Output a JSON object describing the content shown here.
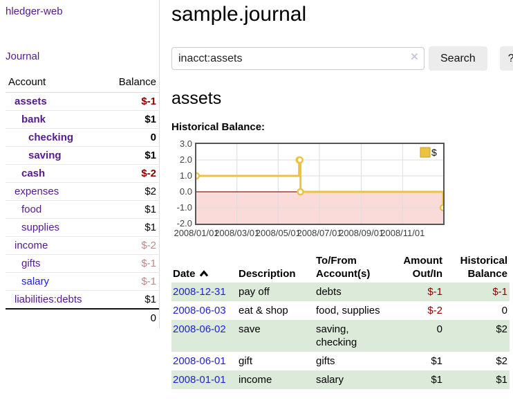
{
  "app": {
    "brand": "hledger-web",
    "nav_journal": "Journal"
  },
  "colors": {
    "link_purple": "#551a8b",
    "link_blue": "#2222cc",
    "negative_strong": "#8b0000",
    "negative_soft": "#b98a8a",
    "stripe_green": "#dcead9",
    "chart_line": "#edc240",
    "chart_negative_fill": "#fbdada",
    "chart_zero_line": "#8b1a1a"
  },
  "sidebar": {
    "header": {
      "account": "Account",
      "balance": "Balance"
    },
    "rows": [
      {
        "name": "assets",
        "balance": "$-1",
        "depth": 1,
        "bold": true
      },
      {
        "name": "bank",
        "balance": "$1",
        "depth": 2,
        "bold": true
      },
      {
        "name": "checking",
        "balance": "0",
        "depth": 3,
        "bold": true
      },
      {
        "name": "saving",
        "balance": "$1",
        "depth": 3,
        "bold": true
      },
      {
        "name": "cash",
        "balance": "$-2",
        "depth": 2,
        "bold": true
      },
      {
        "name": "expenses",
        "balance": "$2",
        "depth": 1,
        "bold": false
      },
      {
        "name": "food",
        "balance": "$1",
        "depth": 2,
        "bold": false
      },
      {
        "name": "supplies",
        "balance": "$1",
        "depth": 2,
        "bold": false
      },
      {
        "name": "income",
        "balance": "$-2",
        "depth": 1,
        "bold": false
      },
      {
        "name": "gifts",
        "balance": "$-1",
        "depth": 2,
        "bold": false
      },
      {
        "name": "salary",
        "balance": "$-1",
        "depth": 2,
        "bold": false,
        "link": "blue"
      },
      {
        "name": "liabilities:debts",
        "balance": "$1",
        "depth": 1,
        "bold": false
      }
    ],
    "total": "0"
  },
  "header": {
    "title": "sample.journal"
  },
  "search": {
    "value": "inacct:assets",
    "clear_icon": "×",
    "button": "Search",
    "help": "?"
  },
  "account_page": {
    "title": "assets",
    "chart_label": "Historical Balance:"
  },
  "chart_data": {
    "type": "line",
    "step": true,
    "title": "Historical Balance",
    "series": [
      {
        "name": "$",
        "points": [
          [
            "2008-01-01",
            1
          ],
          [
            "2008-06-01",
            2
          ],
          [
            "2008-06-02",
            2
          ],
          [
            "2008-06-03",
            0
          ],
          [
            "2008-12-31",
            -1
          ]
        ]
      }
    ],
    "x_range": [
      "2008-01-01",
      "2008-12-31"
    ],
    "ylim": [
      -2,
      3
    ],
    "y_ticks": [
      "3.0",
      "2.0",
      "1.0",
      "0.0",
      "-1.0",
      "-2.0"
    ],
    "x_ticks": [
      {
        "date": "2008-01-01",
        "label": "2008/01/01"
      },
      {
        "date": "2008-03-01",
        "label": "2008/03/01"
      },
      {
        "date": "2008-05-01",
        "label": "2008/05/01"
      },
      {
        "date": "2008-07-01",
        "label": "2008/07/01"
      },
      {
        "date": "2008-09-01",
        "label": "2008/09/01"
      },
      {
        "date": "2008-11-01",
        "label": "2008/11/01"
      }
    ],
    "legend": {
      "position": "top-right",
      "label": "$"
    },
    "grid": true,
    "negative_region_shaded": true
  },
  "register": {
    "columns": [
      "Date",
      "Description",
      "To/From Account(s)",
      "Amount Out/In",
      "Historical Balance"
    ],
    "sort": {
      "column": "Date",
      "direction": "ascending"
    },
    "rows": [
      {
        "date": "2008-12-31",
        "description": "pay off",
        "accounts": [
          "debts"
        ],
        "amount": "$-1",
        "balance": "$-1"
      },
      {
        "date": "2008-06-03",
        "description": "eat & shop",
        "accounts": [
          "food",
          "supplies"
        ],
        "amount": "$-2",
        "balance": "0"
      },
      {
        "date": "2008-06-02",
        "description": "save",
        "accounts": [
          "saving",
          "checking"
        ],
        "amount": "0",
        "balance": "$2"
      },
      {
        "date": "2008-06-01",
        "description": "gift",
        "accounts": [
          "gifts"
        ],
        "amount": "$1",
        "balance": "$2"
      },
      {
        "date": "2008-01-01",
        "description": "income",
        "accounts": [
          "salary"
        ],
        "amount": "$1",
        "balance": "$1"
      }
    ]
  }
}
